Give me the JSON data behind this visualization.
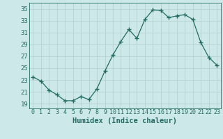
{
  "x": [
    0,
    1,
    2,
    3,
    4,
    5,
    6,
    7,
    8,
    9,
    10,
    11,
    12,
    13,
    14,
    15,
    16,
    17,
    18,
    19,
    20,
    21,
    22,
    23
  ],
  "y": [
    23.5,
    22.8,
    21.3,
    20.5,
    19.5,
    19.5,
    20.2,
    19.7,
    21.5,
    24.5,
    27.2,
    29.5,
    31.5,
    30.0,
    33.2,
    34.8,
    34.7,
    33.5,
    33.8,
    34.0,
    33.2,
    29.3,
    26.8,
    25.5
  ],
  "line_color": "#236b62",
  "marker": "+",
  "marker_size": 4,
  "marker_lw": 1.0,
  "bg_color": "#cce8e8",
  "grid_color": "#b0cccc",
  "xlabel": "Humidex (Indice chaleur)",
  "ylabel_ticks": [
    19,
    21,
    23,
    25,
    27,
    29,
    31,
    33,
    35
  ],
  "ylim": [
    18.2,
    36.0
  ],
  "xlim": [
    -0.5,
    23.5
  ],
  "label_fontsize": 6.5,
  "xlabel_fontsize": 7.5,
  "axis_color": "#236b62"
}
